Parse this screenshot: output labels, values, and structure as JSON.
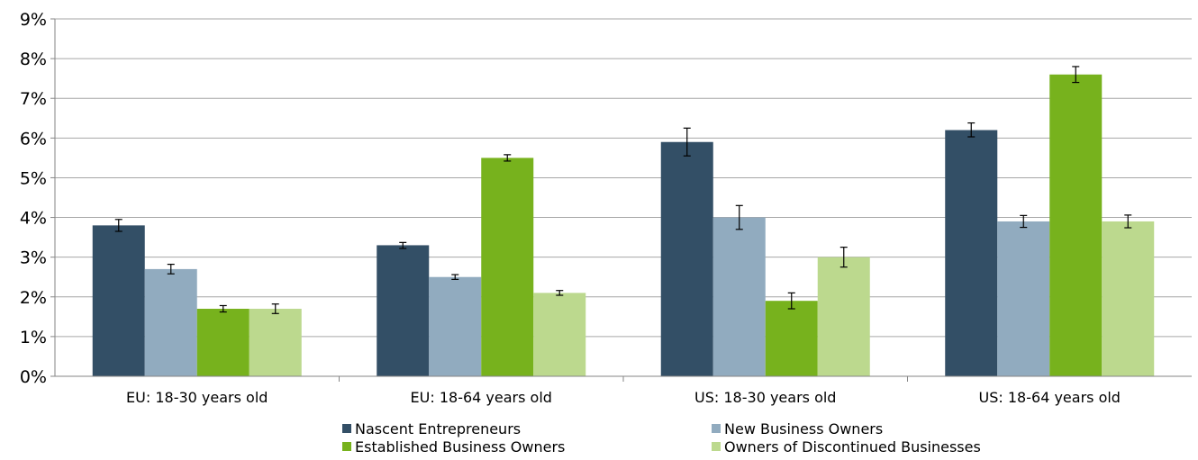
{
  "chart_data": {
    "type": "bar",
    "categories": [
      "EU: 18-30 years old",
      "EU: 18-64 years old",
      "US: 18-30 years old",
      "US: 18-64 years old"
    ],
    "series": [
      {
        "name": "Nascent Entrepreneurs",
        "color": "#334f66",
        "values": [
          3.8,
          3.3,
          5.9,
          6.2
        ],
        "error_low": [
          3.65,
          3.22,
          5.55,
          6.03
        ],
        "error_high": [
          3.95,
          3.37,
          6.25,
          6.38
        ]
      },
      {
        "name": "New Business Owners",
        "color": "#91abbf",
        "values": [
          2.7,
          2.5,
          4.0,
          3.9
        ],
        "error_low": [
          2.58,
          2.44,
          3.7,
          3.75
        ],
        "error_high": [
          2.82,
          2.56,
          4.3,
          4.05
        ]
      },
      {
        "name": "Established Business Owners",
        "color": "#77b21d",
        "values": [
          1.7,
          5.5,
          1.9,
          7.6
        ],
        "error_low": [
          1.62,
          5.42,
          1.7,
          7.4
        ],
        "error_high": [
          1.78,
          5.58,
          2.1,
          7.8
        ]
      },
      {
        "name": "Owners of Discontinued Businesses",
        "color": "#bcd98e",
        "values": [
          1.7,
          2.1,
          3.0,
          3.9
        ],
        "error_low": [
          1.58,
          2.04,
          2.75,
          3.74
        ],
        "error_high": [
          1.82,
          2.16,
          3.25,
          4.06
        ]
      }
    ],
    "yticks": [
      "0%",
      "1%",
      "2%",
      "3%",
      "4%",
      "5%",
      "6%",
      "7%",
      "8%",
      "9%"
    ],
    "ylim": [
      0,
      9
    ],
    "title": "",
    "xlabel": "",
    "ylabel": "",
    "grid": true,
    "legend_position": "bottom"
  }
}
